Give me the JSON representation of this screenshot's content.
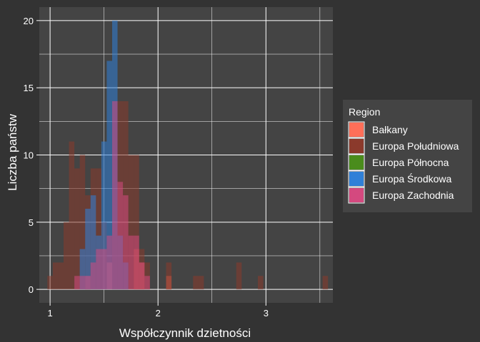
{
  "chart_data": {
    "type": "histogram",
    "xlabel": "Współczynnik dzietności",
    "ylabel": "Liczba państw",
    "xlim": [
      0.9,
      3.62
    ],
    "ylim": [
      -1,
      21
    ],
    "x_ticks": [
      1,
      2,
      3
    ],
    "y_ticks": [
      0,
      5,
      10,
      15,
      20
    ],
    "grid": true,
    "bin_width": 0.05,
    "legend": {
      "title": "Region",
      "position": "right"
    },
    "series": [
      {
        "name": "Bałkany",
        "color": "#ff6f59",
        "bins": [
          [
            1.35,
            1
          ],
          [
            1.55,
            2
          ],
          [
            1.8,
            3
          ],
          [
            1.85,
            2
          ],
          [
            2.1,
            1
          ]
        ]
      },
      {
        "name": "Europa Południowa",
        "color": "#8b3a2c",
        "bins": [
          [
            1.0,
            1
          ],
          [
            1.05,
            2
          ],
          [
            1.1,
            2
          ],
          [
            1.15,
            5
          ],
          [
            1.2,
            11
          ],
          [
            1.25,
            9
          ],
          [
            1.3,
            10
          ],
          [
            1.35,
            7
          ],
          [
            1.4,
            9
          ],
          [
            1.45,
            9
          ],
          [
            1.5,
            5
          ],
          [
            1.6,
            5
          ],
          [
            1.65,
            14
          ],
          [
            1.7,
            14
          ],
          [
            1.75,
            10
          ],
          [
            1.8,
            10
          ],
          [
            1.85,
            3
          ],
          [
            1.9,
            2
          ],
          [
            2.1,
            2
          ],
          [
            2.35,
            1
          ],
          [
            2.4,
            1
          ],
          [
            2.75,
            2
          ],
          [
            2.95,
            1
          ],
          [
            3.55,
            1
          ]
        ]
      },
      {
        "name": "Europa Północna",
        "color": "#4a8c1c",
        "bins": []
      },
      {
        "name": "Europa Środkowa",
        "color": "#3080d8",
        "bins": [
          [
            1.3,
            3
          ],
          [
            1.35,
            6
          ],
          [
            1.4,
            7
          ],
          [
            1.45,
            4
          ],
          [
            1.5,
            11
          ],
          [
            1.55,
            17
          ],
          [
            1.6,
            20
          ],
          [
            1.65,
            4
          ],
          [
            1.7,
            2
          ]
        ]
      },
      {
        "name": "Europa Zachodnia",
        "color": "#d4497f",
        "bins": [
          [
            1.25,
            1
          ],
          [
            1.3,
            1
          ],
          [
            1.35,
            1
          ],
          [
            1.4,
            2
          ],
          [
            1.45,
            3
          ],
          [
            1.5,
            3
          ],
          [
            1.55,
            4
          ],
          [
            1.6,
            14
          ],
          [
            1.65,
            8
          ],
          [
            1.7,
            7
          ],
          [
            1.75,
            4
          ],
          [
            1.8,
            4
          ],
          [
            1.85,
            2
          ],
          [
            1.9,
            1
          ]
        ]
      }
    ]
  }
}
